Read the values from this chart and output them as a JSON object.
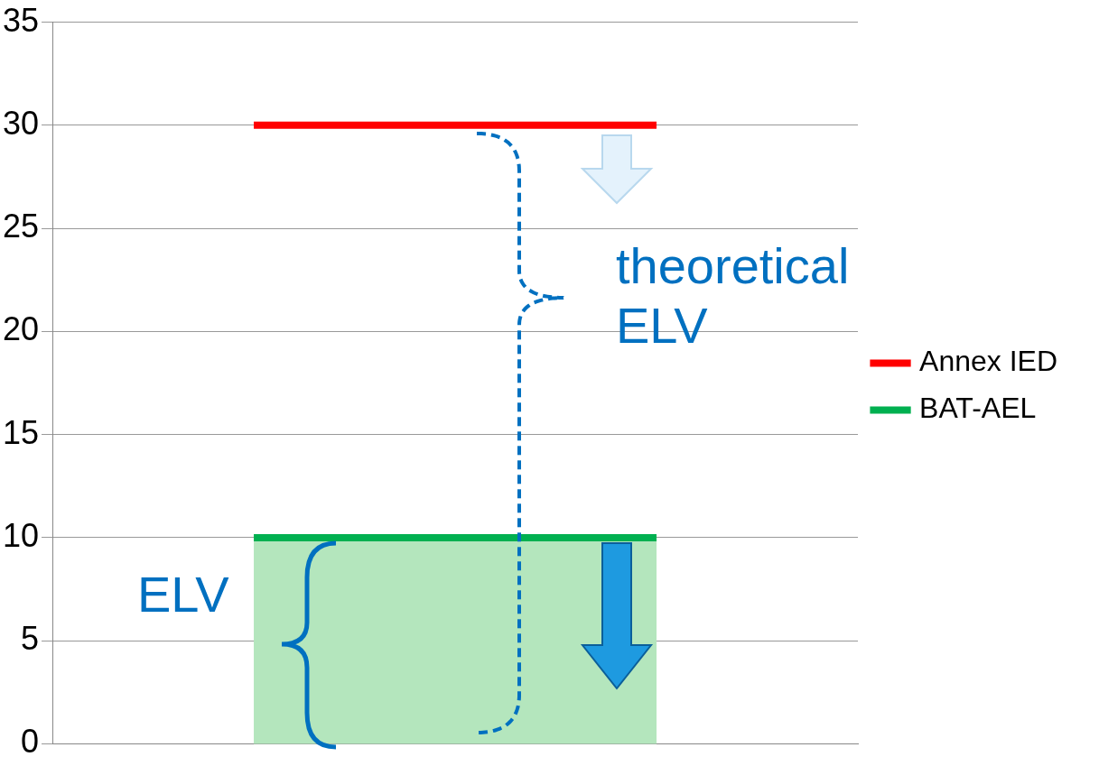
{
  "chart_data": {
    "type": "line",
    "categories": [
      null,
      null
    ],
    "series": [
      {
        "name": "Annex IED",
        "color": "#ff0000",
        "values": [
          30,
          30
        ]
      },
      {
        "name": "BAT-AEL",
        "color": "#00b050",
        "values": [
          10,
          10
        ]
      }
    ],
    "ylim": [
      0,
      35
    ],
    "yticks": [
      0,
      5,
      10,
      15,
      20,
      25,
      30,
      35
    ],
    "grid": "y",
    "legend": "right",
    "marker": "none",
    "line_style": "solid",
    "bands": [
      {
        "axis": "y",
        "from": 0,
        "to": 10,
        "color": "#b4e6bd"
      }
    ],
    "annotations": [
      "theoretical ELV",
      "ELV"
    ]
  }
}
